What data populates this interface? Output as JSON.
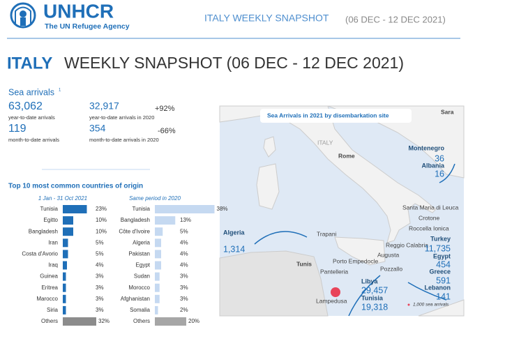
{
  "header": {
    "logo_name": "UNHCR",
    "logo_tagline": "The UN Refugee Agency",
    "title": "ITALY WEEKLY SNAPSHOT",
    "dates": "(06 DEC - 12 DEC 2021)"
  },
  "page_title": {
    "country": "ITALY",
    "title": "WEEKLY SNAPSHOT (06 DEC - 12 DEC 2021)"
  },
  "sea_arrivals": {
    "title": "Sea arrivals",
    "footnote": "1",
    "ytd_value": "63,062",
    "ytd_label": "year-to-date arrivals",
    "ytd_2020_value": "32,917",
    "ytd_2020_label": "year-to-date arrivals in 2020",
    "ytd_change": "+92%",
    "mtd_value": "119",
    "mtd_label": "month-to-date arrivals",
    "mtd_2020_value": "354",
    "mtd_2020_label": "month-to-date arrivals in 2020",
    "mtd_change": "-66%"
  },
  "origin_chart": {
    "title": "Top 10 most common countries of origin",
    "panels": [
      {
        "subtitle": "1 Jan - 31 Oct 2021",
        "xlim": [
          0,
          40
        ],
        "categories": [
          "Tunisia",
          "Egitto",
          "Bangladesh",
          "Iran",
          "Costa d'Avorio",
          "Iraq",
          "Guinea",
          "Eritrea",
          "Marocco",
          "Siria",
          "Others"
        ],
        "values": [
          23,
          10,
          10,
          5,
          5,
          4,
          3,
          3,
          3,
          3,
          32
        ],
        "value_labels": [
          "23%",
          "10%",
          "10%",
          "5%",
          "5%",
          "4%",
          "3%",
          "3%",
          "3%",
          "3%",
          "32%"
        ],
        "colors": [
          "#1f6fb8",
          "#1f6fb8",
          "#1f6fb8",
          "#1f6fb8",
          "#1f6fb8",
          "#1f6fb8",
          "#1f6fb8",
          "#1f6fb8",
          "#1f6fb8",
          "#1f6fb8",
          "#8c8c8c"
        ]
      },
      {
        "subtitle": "Same period in 2020",
        "xlim": [
          0,
          40
        ],
        "categories": [
          "Tunisia",
          "Bangladesh",
          "Côte d'Ivoire",
          "Algeria",
          "Pakistan",
          "Egypt",
          "Sudan",
          "Morocco",
          "Afghanistan",
          "Somalia",
          "Others"
        ],
        "values": [
          38,
          13,
          5,
          4,
          4,
          4,
          3,
          3,
          3,
          2,
          20
        ],
        "value_labels": [
          "38%",
          "13%",
          "5%",
          "4%",
          "4%",
          "4%",
          "3%",
          "3%",
          "3%",
          "2%",
          "20%"
        ],
        "colors": [
          "#c5d9f1",
          "#c5d9f1",
          "#c5d9f1",
          "#c5d9f1",
          "#c5d9f1",
          "#c5d9f1",
          "#c5d9f1",
          "#c5d9f1",
          "#c5d9f1",
          "#c5d9f1",
          "#a6a6a6"
        ]
      }
    ]
  },
  "map": {
    "title": "Sea Arrivals in 2021 by disembarkation site",
    "places": [
      "Sara",
      "ITALY",
      "Rome",
      "Santa Maria di Leuca",
      "Crotone",
      "Roccella Ionica",
      "Trapani",
      "Reggio Calabria",
      "Tunis",
      "Porto Empedocle",
      "Augusta",
      "Pantelleria",
      "Pozzallo",
      "Lampedusa"
    ],
    "arrivals": [
      {
        "name": "Montenegro",
        "value": "36"
      },
      {
        "name": "Albania",
        "value": "16"
      },
      {
        "name": "Algeria",
        "value": "1,314"
      },
      {
        "name": "Libya",
        "value": "29,457"
      },
      {
        "name": "Tunisia",
        "value": "19,318"
      },
      {
        "name": "Turkey",
        "value": "11,735"
      },
      {
        "name": "Egypt",
        "value": "454"
      },
      {
        "name": "Greece",
        "value": "591"
      },
      {
        "name": "Lebanon",
        "value": "141"
      }
    ],
    "legend": "1,000 sea arrivals"
  }
}
